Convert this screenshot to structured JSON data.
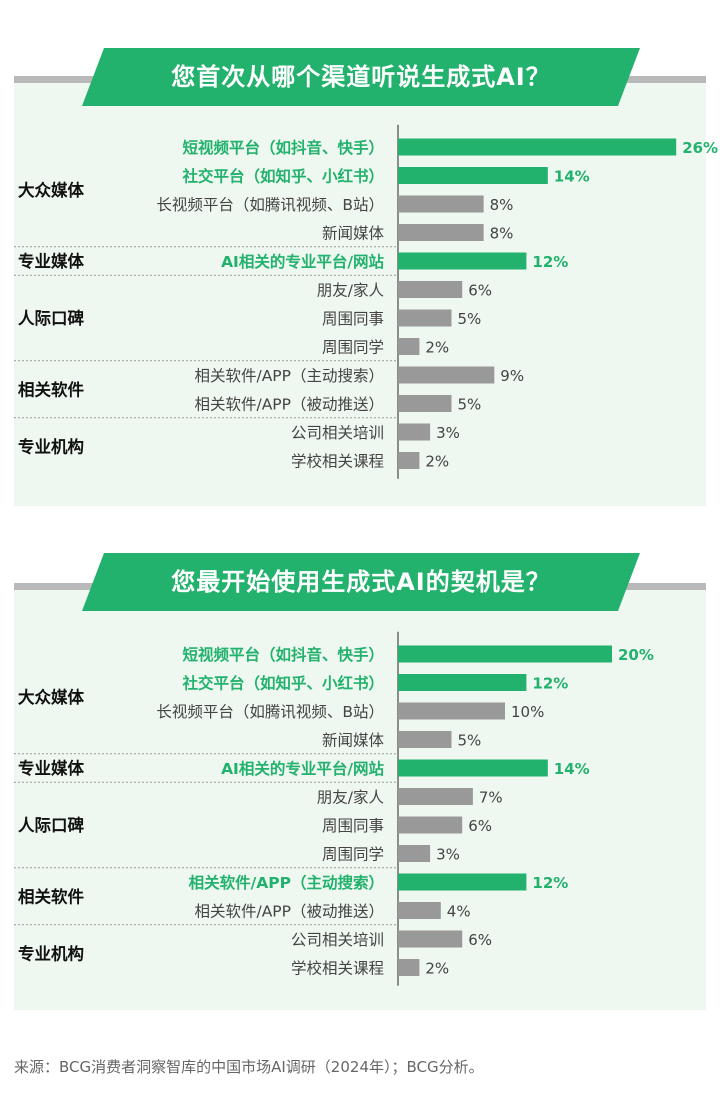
{
  "colors": {
    "highlight": "#23b26d",
    "normal_bar": "#999999",
    "text": "#444444",
    "panel_bg": "#eef7f0"
  },
  "chart_data": [
    {
      "type": "bar",
      "orientation": "horizontal",
      "title": "您首次从哪个渠道听说生成式AI？",
      "groups": [
        {
          "name": "大众媒体",
          "items": [
            {
              "label": "短视频平台（如抖音、快手）",
              "value": 26,
              "highlight": true
            },
            {
              "label": "社交平台（如知乎、小红书）",
              "value": 14,
              "highlight": true
            },
            {
              "label": "长视频平台（如腾讯视频、B站）",
              "value": 8,
              "highlight": false
            },
            {
              "label": "新闻媒体",
              "value": 8,
              "highlight": false
            }
          ]
        },
        {
          "name": "专业媒体",
          "items": [
            {
              "label": "AI相关的专业平台/网站",
              "value": 12,
              "highlight": true
            }
          ]
        },
        {
          "name": "人际口碑",
          "items": [
            {
              "label": "朋友/家人",
              "value": 6,
              "highlight": false
            },
            {
              "label": "周围同事",
              "value": 5,
              "highlight": false
            },
            {
              "label": "周围同学",
              "value": 2,
              "highlight": false
            }
          ]
        },
        {
          "name": "相关软件",
          "items": [
            {
              "label": "相关软件/APP（主动搜索）",
              "value": 9,
              "highlight": false
            },
            {
              "label": "相关软件/APP（被动推送）",
              "value": 5,
              "highlight": false
            }
          ]
        },
        {
          "name": "专业机构",
          "items": [
            {
              "label": "公司相关培训",
              "value": 3,
              "highlight": false
            },
            {
              "label": "学校相关课程",
              "value": 2,
              "highlight": false
            }
          ]
        }
      ],
      "unit": "%",
      "xlim": [
        0,
        26
      ]
    },
    {
      "type": "bar",
      "orientation": "horizontal",
      "title": "您最开始使用生成式AI的契机是？",
      "groups": [
        {
          "name": "大众媒体",
          "items": [
            {
              "label": "短视频平台（如抖音、快手）",
              "value": 20,
              "highlight": true
            },
            {
              "label": "社交平台（如知乎、小红书）",
              "value": 12,
              "highlight": true
            },
            {
              "label": "长视频平台（如腾讯视频、B站）",
              "value": 10,
              "highlight": false
            },
            {
              "label": "新闻媒体",
              "value": 5,
              "highlight": false
            }
          ]
        },
        {
          "name": "专业媒体",
          "items": [
            {
              "label": "AI相关的专业平台/网站",
              "value": 14,
              "highlight": true
            }
          ]
        },
        {
          "name": "人际口碑",
          "items": [
            {
              "label": "朋友/家人",
              "value": 7,
              "highlight": false
            },
            {
              "label": "周围同事",
              "value": 6,
              "highlight": false
            },
            {
              "label": "周围同学",
              "value": 3,
              "highlight": false
            }
          ]
        },
        {
          "name": "相关软件",
          "items": [
            {
              "label": "相关软件/APP（主动搜索）",
              "value": 12,
              "highlight": true
            },
            {
              "label": "相关软件/APP（被动推送）",
              "value": 4,
              "highlight": false
            }
          ]
        },
        {
          "name": "专业机构",
          "items": [
            {
              "label": "公司相关培训",
              "value": 6,
              "highlight": false
            },
            {
              "label": "学校相关课程",
              "value": 2,
              "highlight": false
            }
          ]
        }
      ],
      "unit": "%",
      "xlim": [
        0,
        26
      ]
    }
  ],
  "footer": {
    "source": "来源：BCG消费者洞察智库的中国市场AI调研（2024年）；BCG分析。"
  }
}
